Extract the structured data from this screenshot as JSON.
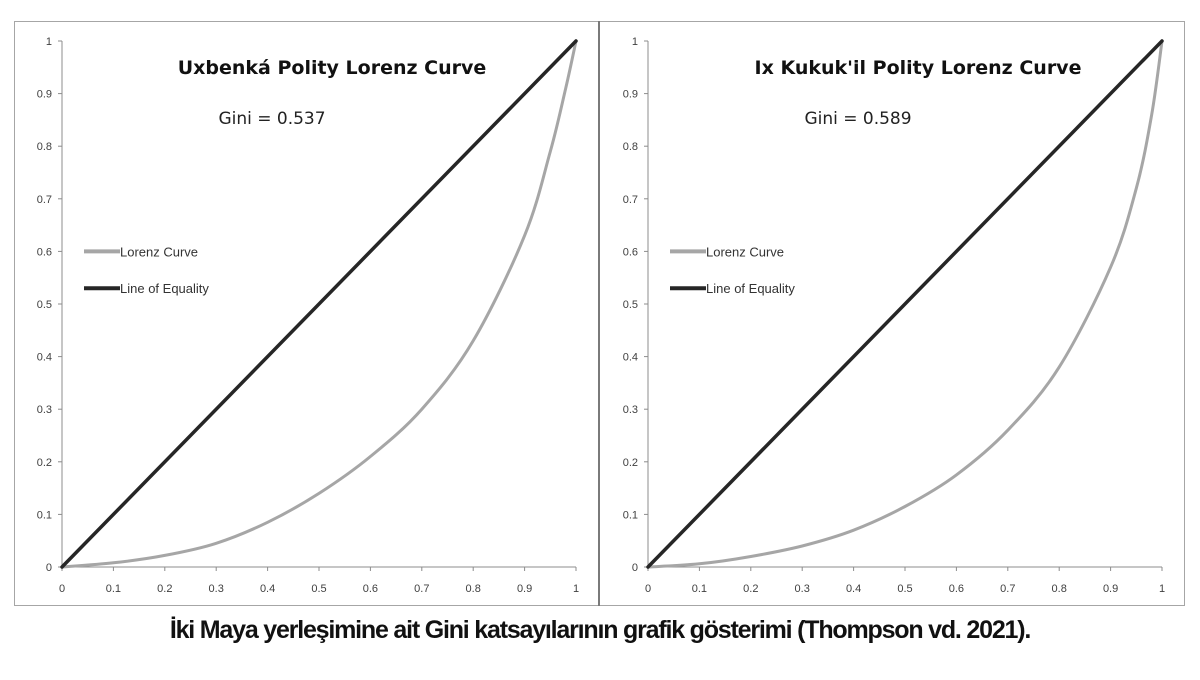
{
  "caption": "İki Maya yerleşimine ait Gini katsayılarının grafik gösterimi (Thompson vd. 2021).",
  "colors": {
    "lorenz_curve": "#a6a6a6",
    "line_of_equality": "#262626",
    "axis": "#8c8c8c"
  },
  "chart_data": [
    {
      "type": "line",
      "title": "Uxbenká Polity Lorenz Curve",
      "annotation": "Gini = 0.537",
      "xlabel": "",
      "ylabel": "",
      "xlim": [
        0,
        1
      ],
      "ylim": [
        0,
        1
      ],
      "x_ticks": [
        "0",
        "0.1",
        "0.2",
        "0.3",
        "0.4",
        "0.5",
        "0.6",
        "0.7",
        "0.8",
        "0.9",
        "1"
      ],
      "y_ticks": [
        "0",
        "0.1",
        "0.2",
        "0.3",
        "0.4",
        "0.5",
        "0.6",
        "0.7",
        "0.8",
        "0.9",
        "1"
      ],
      "grid": true,
      "legend_position": "center-left",
      "series": [
        {
          "name": "Lorenz Curve",
          "x": [
            0,
            0.1,
            0.2,
            0.3,
            0.4,
            0.5,
            0.6,
            0.7,
            0.8,
            0.9,
            0.95,
            0.98,
            1
          ],
          "y": [
            0,
            0.008,
            0.022,
            0.045,
            0.085,
            0.14,
            0.21,
            0.3,
            0.43,
            0.63,
            0.79,
            0.91,
            1
          ]
        },
        {
          "name": "Line of Equality",
          "x": [
            0,
            1
          ],
          "y": [
            0,
            1
          ]
        }
      ]
    },
    {
      "type": "line",
      "title": "Ix Kukuk'il Polity Lorenz Curve",
      "annotation": "Gini = 0.589",
      "xlabel": "",
      "ylabel": "",
      "xlim": [
        0,
        1
      ],
      "ylim": [
        0,
        1
      ],
      "x_ticks": [
        "0",
        "0.1",
        "0.2",
        "0.3",
        "0.4",
        "0.5",
        "0.6",
        "0.7",
        "0.8",
        "0.9",
        "1"
      ],
      "y_ticks": [
        "0",
        "0.1",
        "0.2",
        "0.3",
        "0.4",
        "0.5",
        "0.6",
        "0.7",
        "0.8",
        "0.9",
        "1"
      ],
      "grid": true,
      "legend_position": "center-left",
      "series": [
        {
          "name": "Lorenz Curve",
          "x": [
            0,
            0.1,
            0.2,
            0.3,
            0.4,
            0.5,
            0.6,
            0.7,
            0.8,
            0.9,
            0.95,
            0.98,
            1
          ],
          "y": [
            0,
            0.006,
            0.02,
            0.04,
            0.07,
            0.115,
            0.175,
            0.26,
            0.38,
            0.57,
            0.72,
            0.86,
            1
          ]
        },
        {
          "name": "Line of Equality",
          "x": [
            0,
            1
          ],
          "y": [
            0,
            1
          ]
        }
      ]
    }
  ]
}
